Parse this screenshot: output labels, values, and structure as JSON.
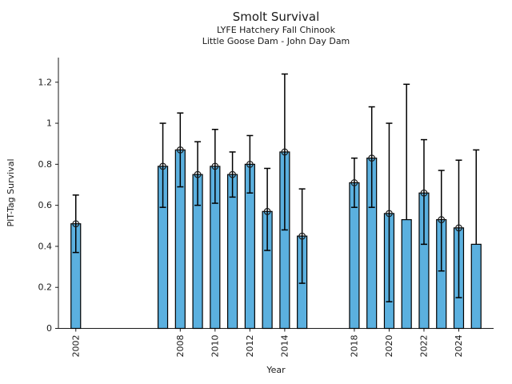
{
  "chart_data": {
    "type": "bar",
    "title": "Smolt Survival",
    "subtitle1": "LYFE Hatchery Fall Chinook",
    "subtitle2": "Little Goose Dam - John Day Dam",
    "xlabel": "Year",
    "ylabel": "PIT-Tag Survival",
    "xlim": [
      2001,
      2026
    ],
    "ylim": [
      0,
      1.32
    ],
    "grid": false,
    "legend": "none",
    "bar_width_years": 0.55,
    "colors": {
      "bar_fill": "#5BB0DF",
      "bar_edge": "#000000",
      "errorbar": "#000000",
      "text": "#1a1a1a",
      "background": "#ffffff"
    },
    "yticks": [
      {
        "v": 0,
        "label": "0"
      },
      {
        "v": 0.2,
        "label": "0.2"
      },
      {
        "v": 0.4,
        "label": "0.4"
      },
      {
        "v": 0.6,
        "label": "0.6"
      },
      {
        "v": 0.8,
        "label": "0.8"
      },
      {
        "v": 1,
        "label": "1"
      },
      {
        "v": 1.2,
        "label": "1.2"
      }
    ],
    "xticks": [
      {
        "v": 2002,
        "label": "2002"
      },
      {
        "v": 2008,
        "label": "2008"
      },
      {
        "v": 2010,
        "label": "2010"
      },
      {
        "v": 2012,
        "label": "2012"
      },
      {
        "v": 2014,
        "label": "2014"
      },
      {
        "v": 2018,
        "label": "2018"
      },
      {
        "v": 2020,
        "label": "2020"
      },
      {
        "v": 2022,
        "label": "2022"
      },
      {
        "v": 2024,
        "label": "2024"
      }
    ],
    "points": [
      {
        "year": 2002,
        "value": 0.51,
        "ci_low": 0.37,
        "ci_high": 0.65,
        "marker": true
      },
      {
        "year": 2007,
        "value": 0.79,
        "ci_low": 0.59,
        "ci_high": 1.0,
        "marker": true
      },
      {
        "year": 2008,
        "value": 0.87,
        "ci_low": 0.69,
        "ci_high": 1.05,
        "marker": true
      },
      {
        "year": 2009,
        "value": 0.75,
        "ci_low": 0.6,
        "ci_high": 0.91,
        "marker": true
      },
      {
        "year": 2010,
        "value": 0.79,
        "ci_low": 0.61,
        "ci_high": 0.97,
        "marker": true
      },
      {
        "year": 2011,
        "value": 0.75,
        "ci_low": 0.64,
        "ci_high": 0.86,
        "marker": true
      },
      {
        "year": 2012,
        "value": 0.8,
        "ci_low": 0.66,
        "ci_high": 0.94,
        "marker": true
      },
      {
        "year": 2013,
        "value": 0.57,
        "ci_low": 0.38,
        "ci_high": 0.78,
        "marker": true
      },
      {
        "year": 2014,
        "value": 0.86,
        "ci_low": 0.48,
        "ci_high": 1.24,
        "marker": true
      },
      {
        "year": 2015,
        "value": 0.45,
        "ci_low": 0.22,
        "ci_high": 0.68,
        "marker": true
      },
      {
        "year": 2018,
        "value": 0.71,
        "ci_low": 0.59,
        "ci_high": 0.83,
        "marker": true
      },
      {
        "year": 2019,
        "value": 0.83,
        "ci_low": 0.59,
        "ci_high": 1.08,
        "marker": true
      },
      {
        "year": 2020,
        "value": 0.56,
        "ci_low": 0.13,
        "ci_high": 1.0,
        "marker": true
      },
      {
        "year": 2021,
        "value": 0.53,
        "ci_low": null,
        "ci_high": 1.19,
        "marker": false
      },
      {
        "year": 2022,
        "value": 0.66,
        "ci_low": 0.41,
        "ci_high": 0.92,
        "marker": true
      },
      {
        "year": 2023,
        "value": 0.53,
        "ci_low": 0.28,
        "ci_high": 0.77,
        "marker": true
      },
      {
        "year": 2024,
        "value": 0.49,
        "ci_low": 0.15,
        "ci_high": 0.82,
        "marker": true
      },
      {
        "year": 2025,
        "value": 0.41,
        "ci_low": null,
        "ci_high": 0.87,
        "marker": false
      }
    ]
  }
}
